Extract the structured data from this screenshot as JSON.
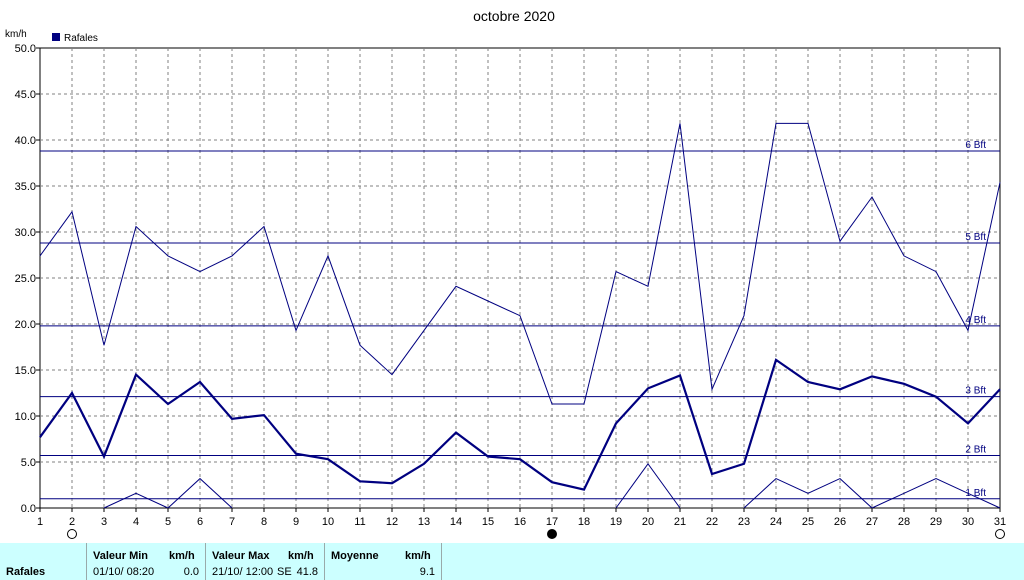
{
  "chart_data": {
    "type": "line",
    "title": "octobre 2020",
    "ylabel": "km/h",
    "ylim": [
      0,
      50
    ],
    "y_ticks": [
      "0.0",
      "5.0",
      "10.0",
      "15.0",
      "20.0",
      "25.0",
      "30.0",
      "35.0",
      "40.0",
      "45.0",
      "50.0"
    ],
    "x": [
      1,
      2,
      3,
      4,
      5,
      6,
      7,
      8,
      9,
      10,
      11,
      12,
      13,
      14,
      15,
      16,
      17,
      18,
      19,
      20,
      21,
      22,
      23,
      24,
      25,
      26,
      27,
      28,
      29,
      30,
      31
    ],
    "legend": {
      "label": "Rafales",
      "color": "#000080",
      "placement": "top-left"
    },
    "grid": true,
    "series": [
      {
        "name": "Rafales",
        "role": "max",
        "color": "#000080",
        "values": [
          27.4,
          32.2,
          17.7,
          30.6,
          27.4,
          25.7,
          27.4,
          30.6,
          19.3,
          27.4,
          17.7,
          14.5,
          19.3,
          24.1,
          22.5,
          20.9,
          11.3,
          11.3,
          25.7,
          24.1,
          41.8,
          12.9,
          20.9,
          41.8,
          41.8,
          29.0,
          33.8,
          27.4,
          25.7,
          19.3,
          35.4
        ]
      },
      {
        "name": "Rafales",
        "role": "mean",
        "color": "#000080",
        "values": [
          7.7,
          12.5,
          5.6,
          14.5,
          11.3,
          13.7,
          9.7,
          10.1,
          5.9,
          5.3,
          2.9,
          2.7,
          4.8,
          8.2,
          5.6,
          5.3,
          2.8,
          2.0,
          9.2,
          13.0,
          14.4,
          3.7,
          4.8,
          16.1,
          13.7,
          12.9,
          14.3,
          13.5,
          12.1,
          9.2,
          12.9
        ]
      },
      {
        "name": "Rafales",
        "role": "min",
        "color": "#000080",
        "values": [
          null,
          null,
          0.0,
          1.6,
          0.0,
          3.2,
          0.0,
          null,
          null,
          null,
          null,
          null,
          null,
          null,
          null,
          null,
          null,
          null,
          0.0,
          4.8,
          0.0,
          null,
          0.0,
          3.2,
          1.6,
          3.2,
          0.0,
          1.6,
          3.2,
          1.6,
          0.0
        ]
      }
    ],
    "beaufort_lines": [
      {
        "label": "1 Bft",
        "value": 1.0
      },
      {
        "label": "2 Bft",
        "value": 5.7
      },
      {
        "label": "3 Bft",
        "value": 12.1
      },
      {
        "label": "4 Bft",
        "value": 19.8
      },
      {
        "label": "5 Bft",
        "value": 28.8
      },
      {
        "label": "6 Bft",
        "value": 38.8
      }
    ],
    "moon_phases": [
      {
        "day": 2,
        "phase": "full"
      },
      {
        "day": 17,
        "phase": "new"
      },
      {
        "day": 31,
        "phase": "full"
      }
    ]
  },
  "summary": {
    "row_label": "Rafales",
    "min_header": "Valeur Min",
    "min_unit": "km/h",
    "min_when": "01/10/  08:20",
    "min_value": "0.0",
    "max_header": "Valeur Max",
    "max_unit": "km/h",
    "max_when": "21/10/  12:00",
    "max_dir": "SE",
    "max_value": "41.8",
    "mean_header": "Moyenne",
    "mean_unit": "km/h",
    "mean_value": "9.1"
  }
}
